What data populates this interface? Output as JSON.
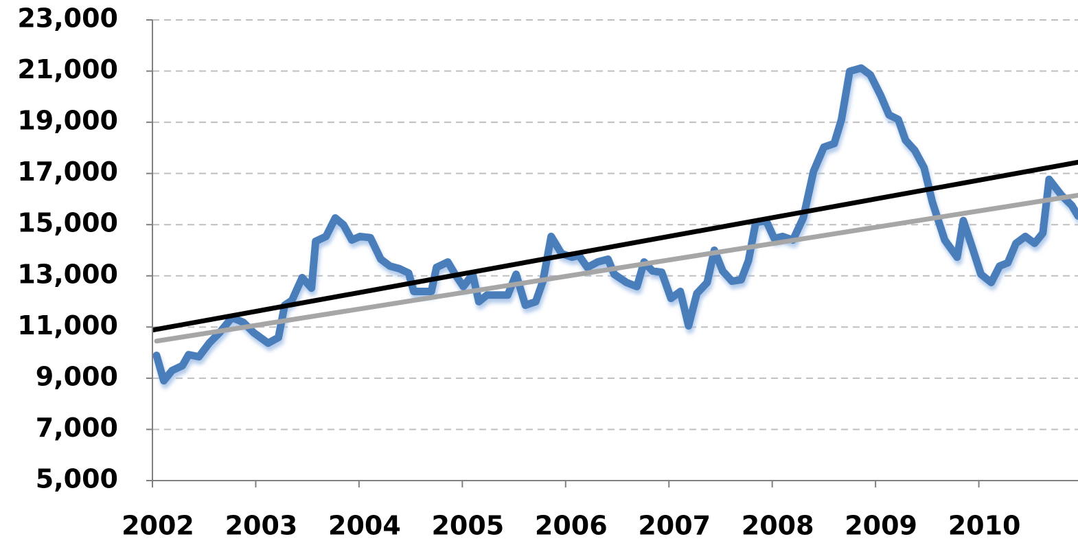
{
  "chart_data": {
    "type": "line",
    "xlim": [
      2002,
      2010.96
    ],
    "xticks": [
      2002,
      2003,
      2004,
      2005,
      2006,
      2007,
      2008,
      2009,
      2010
    ],
    "ylim": [
      5000,
      23000
    ],
    "yticks": [
      {
        "value": 5000,
        "label": "5,000"
      },
      {
        "value": 7000,
        "label": "7,000"
      },
      {
        "value": 9000,
        "label": "9,000"
      },
      {
        "value": 11000,
        "label": "11,000"
      },
      {
        "value": 13000,
        "label": "13,000"
      },
      {
        "value": 15000,
        "label": "15,000"
      },
      {
        "value": 17000,
        "label": "17,000"
      },
      {
        "value": 19000,
        "label": "19,000"
      },
      {
        "value": 21000,
        "label": "21,000"
      },
      {
        "value": 23000,
        "label": "23,000"
      }
    ],
    "grid": true,
    "series": [
      {
        "color": "#4a7ebb",
        "x": [
          2002.04,
          2002.11,
          2002.19,
          2002.29,
          2002.35,
          2002.45,
          2002.55,
          2002.65,
          2002.77,
          2002.88,
          2002.98,
          2003.12,
          2003.22,
          2003.28,
          2003.35,
          2003.45,
          2003.54,
          2003.58,
          2003.68,
          2003.77,
          2003.85,
          2003.93,
          2004.01,
          2004.11,
          2004.21,
          2004.3,
          2004.39,
          2004.48,
          2004.53,
          2004.61,
          2004.7,
          2004.75,
          2004.86,
          2004.93,
          2005.01,
          2005.1,
          2005.16,
          2005.24,
          2005.32,
          2005.44,
          2005.52,
          2005.61,
          2005.71,
          2005.78,
          2005.86,
          2005.96,
          2006.06,
          2006.13,
          2006.21,
          2006.31,
          2006.41,
          2006.47,
          2006.59,
          2006.69,
          2006.76,
          2006.84,
          2006.93,
          2007.02,
          2007.11,
          2007.19,
          2007.27,
          2007.37,
          2007.44,
          2007.52,
          2007.61,
          2007.7,
          2007.77,
          2007.84,
          2007.94,
          2008.02,
          2008.1,
          2008.2,
          2008.3,
          2008.4,
          2008.5,
          2008.6,
          2008.67,
          2008.75,
          2008.86,
          2008.95,
          2009.05,
          2009.13,
          2009.22,
          2009.29,
          2009.38,
          2009.47,
          2009.55,
          2009.67,
          2009.79,
          2009.85,
          2009.93,
          2010.02,
          2010.12,
          2010.2,
          2010.28,
          2010.36,
          2010.45,
          2010.54,
          2010.62,
          2010.68,
          2010.8,
          2010.9,
          2010.96
        ],
        "values": [
          9890,
          8900,
          9300,
          9490,
          9920,
          9840,
          10370,
          10780,
          11370,
          11180,
          10780,
          10370,
          10590,
          11850,
          12040,
          12930,
          12520,
          14350,
          14540,
          15260,
          14990,
          14400,
          14540,
          14490,
          13650,
          13380,
          13280,
          13110,
          12390,
          12390,
          12390,
          13330,
          13540,
          13060,
          12580,
          13060,
          11990,
          12250,
          12250,
          12250,
          13060,
          11850,
          11990,
          12790,
          14540,
          13870,
          13730,
          13790,
          13330,
          13540,
          13650,
          13060,
          12740,
          12580,
          13540,
          13190,
          13140,
          12120,
          12390,
          11050,
          12310,
          12740,
          14000,
          13190,
          12790,
          12850,
          13600,
          15080,
          15160,
          14460,
          14540,
          14400,
          15260,
          17090,
          18030,
          18170,
          19110,
          20990,
          21120,
          20850,
          20050,
          19290,
          19110,
          18300,
          17900,
          17230,
          15880,
          14400,
          13730,
          15160,
          14190,
          13060,
          12740,
          13380,
          13510,
          14270,
          14540,
          14270,
          14670,
          16770,
          16150,
          15750,
          15340
        ]
      },
      {
        "color": "#a6a6a6",
        "x": [
          2002.04,
          2010.96
        ],
        "values": [
          10450,
          16150
        ]
      },
      {
        "color": "#000000",
        "x": [
          2002,
          2010.96
        ],
        "values": [
          10880,
          17440
        ]
      }
    ]
  }
}
